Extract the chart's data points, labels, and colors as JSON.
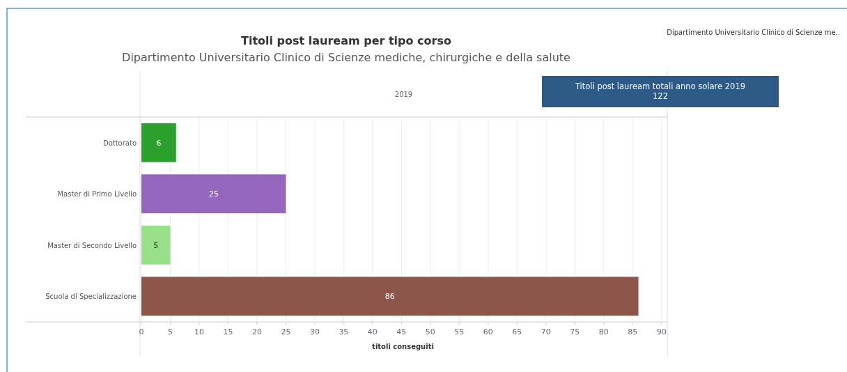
{
  "chart_data": {
    "type": "bar",
    "orientation": "horizontal",
    "title": "Titoli post lauream per tipo corso",
    "subtitle": "Dipartimento Universitario Clinico di Scienze mediche, chirurgiche e della salute",
    "categories": [
      "Dottorato",
      "Master di Primo Livello",
      "Master di Secondo Livello",
      "Scuola di Specializzazione"
    ],
    "values": [
      6,
      25,
      5,
      86
    ],
    "colors": [
      "#2ca02c",
      "#9467bd",
      "#98df8a",
      "#8c564b"
    ],
    "xlim": [
      0,
      91
    ],
    "xticks": [
      0,
      5,
      10,
      15,
      20,
      25,
      30,
      35,
      40,
      45,
      50,
      55,
      60,
      65,
      70,
      75,
      80,
      85,
      90
    ],
    "xlabel": "titoli conseguiti",
    "grid": "x",
    "data_labels": true,
    "annotations": [
      "2019",
      "Titoli post lauream totali anno solare 2019\n122",
      "Dipartimento Universitario Clinico di Scienze me.."
    ]
  }
}
